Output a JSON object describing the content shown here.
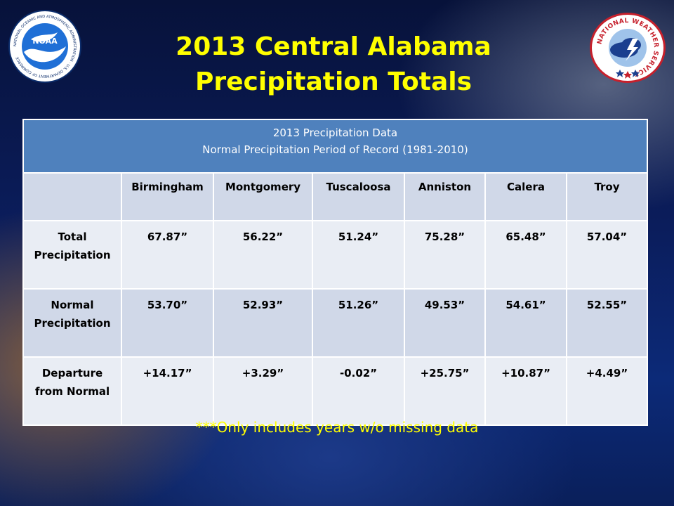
{
  "slide": {
    "title_line1": "2013 Central Alabama",
    "title_line2": "Precipitation Totals",
    "footnote": "***Only includes years w/o missing data"
  },
  "logos": {
    "noaa_text": "NOAA",
    "noaa_ring_text": "NATIONAL OCEANIC AND ATMOSPHERIC ADMINISTRATION · U.S. DEPARTMENT OF COMMERCE",
    "nws_ring_text": "NATIONAL WEATHER SERVICE"
  },
  "table": {
    "header_line1": "2013 Precipitation Data",
    "header_line2": "Normal Precipitation Period of Record (1981-2010)",
    "columns": [
      "",
      "Birmingham",
      "Montgomery",
      "Tuscaloosa",
      "Anniston",
      "Calera",
      "Troy"
    ],
    "rows": [
      {
        "label_line1": "Total",
        "label_line2": "Precipitation",
        "values": [
          "67.87”",
          "56.22”",
          "51.24”",
          "75.28”",
          "65.48”",
          "57.04”"
        ]
      },
      {
        "label_line1": "Normal",
        "label_line2": "Precipitation",
        "values": [
          "53.70”",
          "52.93”",
          "51.26”",
          "49.53”",
          "54.61”",
          "52.55”"
        ]
      },
      {
        "label_line1": "Departure",
        "label_line2": "from Normal",
        "values": [
          "+14.17”",
          "+3.29”",
          "-0.02”",
          "+25.75”",
          "+10.87”",
          "+4.49”"
        ]
      }
    ]
  },
  "colors": {
    "title": "#ffff00",
    "header_blue": "#4f81bd",
    "row_light": "#e9edf4",
    "row_dark": "#d0d8e8"
  }
}
